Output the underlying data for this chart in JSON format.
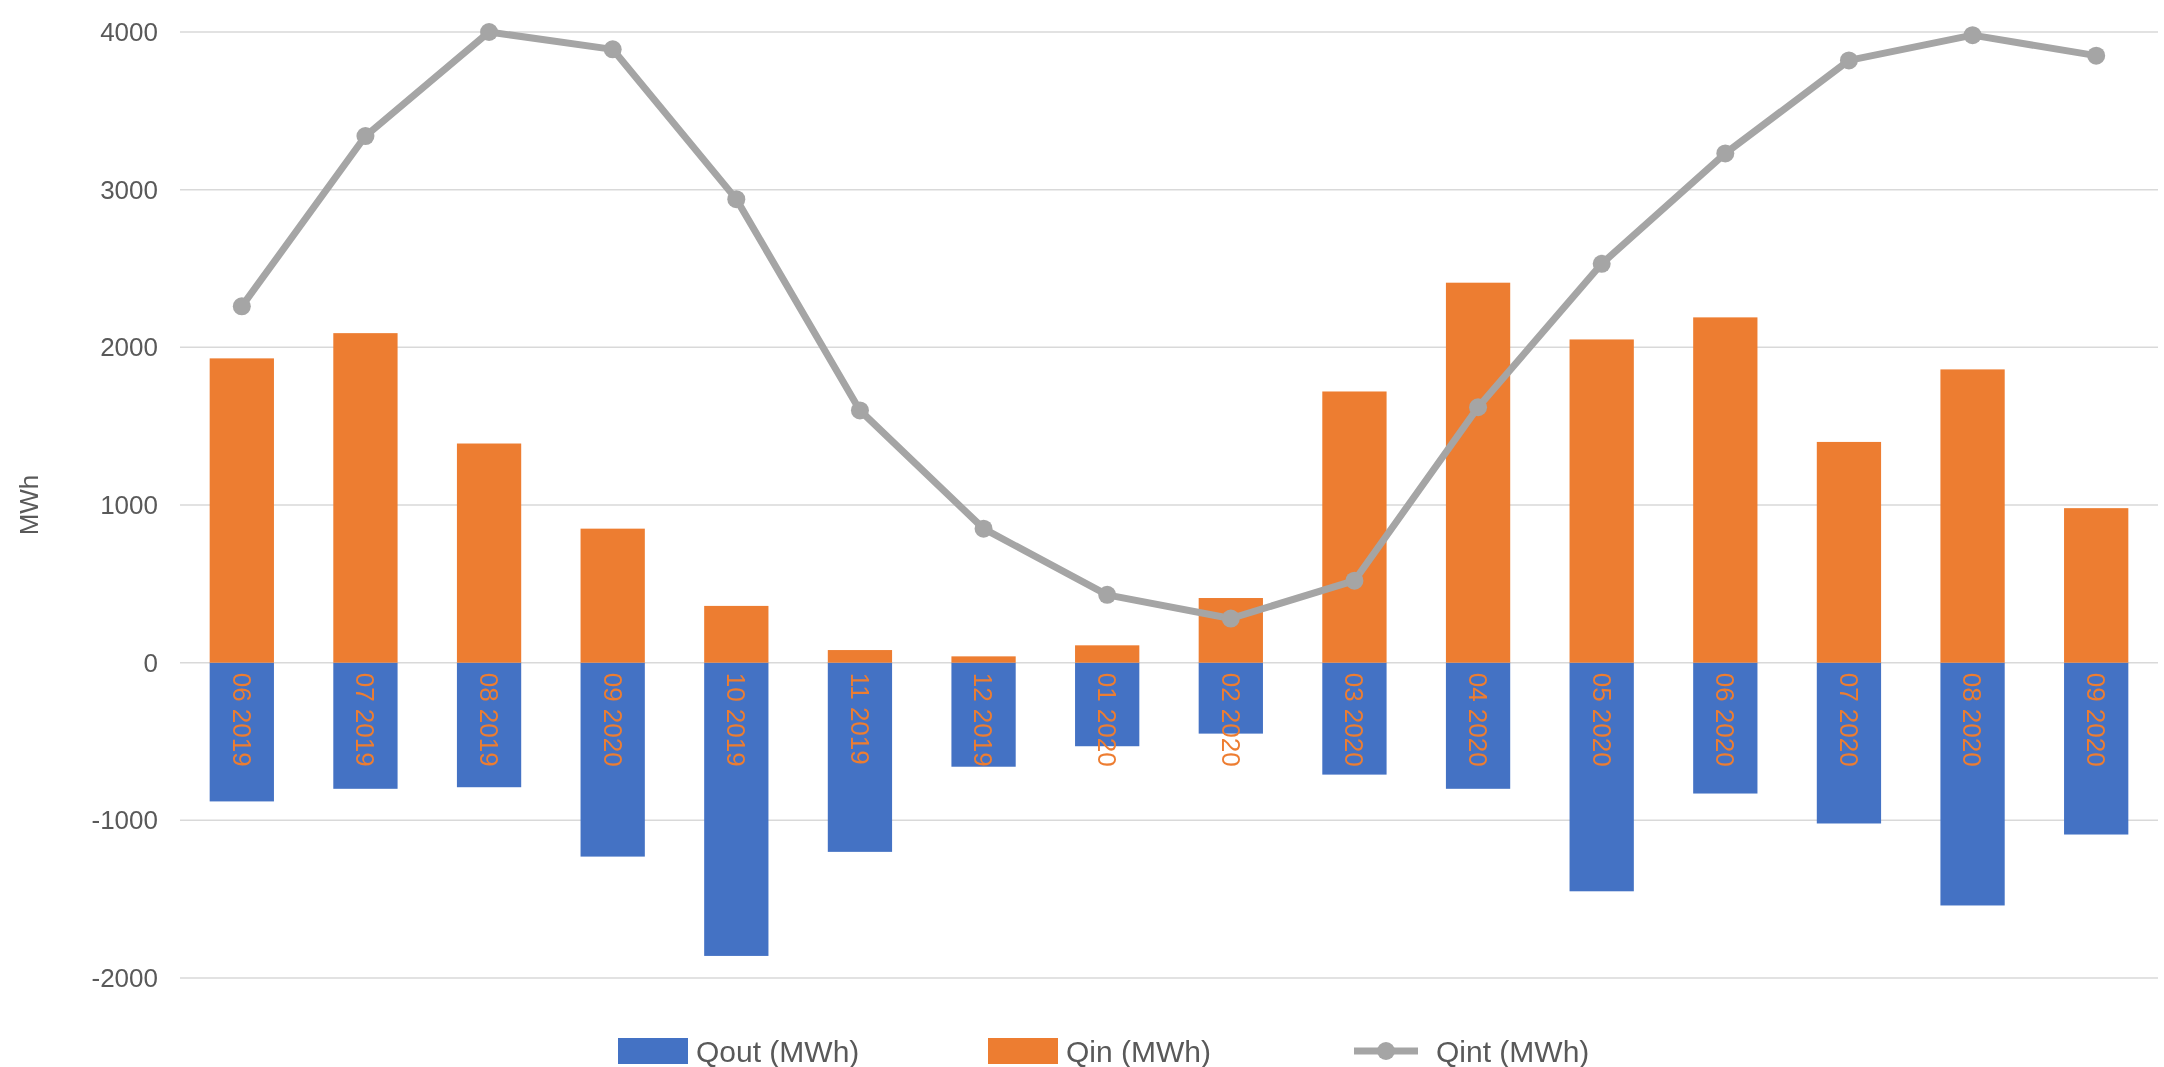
{
  "chart_data": {
    "type": "bar",
    "ylabel": "MWh",
    "categories": [
      "06 2019",
      "07 2019",
      "08 2019",
      "09 2020",
      "10 2019",
      "11 2019",
      "12 2019",
      "01 2020",
      "02 2020",
      "03 2020",
      "04 2020",
      "05 2020",
      "06 2020",
      "07 2020",
      "08 2020",
      "09 2020"
    ],
    "series": [
      {
        "name": "Qout (MWh)",
        "color": "#4472c4",
        "values": [
          -880,
          -800,
          -790,
          -1230,
          -1860,
          -1200,
          -660,
          -530,
          -450,
          -710,
          -800,
          -1450,
          -830,
          -1020,
          -1540,
          -1090
        ]
      },
      {
        "name": "Qin (MWh)",
        "color": "#ed7d31",
        "values": [
          1930,
          2090,
          1390,
          850,
          360,
          80,
          40,
          110,
          410,
          1720,
          2410,
          2050,
          2190,
          1400,
          1860,
          980
        ]
      },
      {
        "name": "Qint (MWh)",
        "type": "line",
        "color": "#a5a5a5",
        "marker": "circle",
        "values": [
          2260,
          3340,
          4000,
          3890,
          2940,
          1600,
          850,
          430,
          280,
          520,
          1620,
          2530,
          3230,
          3820,
          3980,
          3850
        ]
      }
    ],
    "ylim": [
      -2000,
      4000
    ],
    "yticks": [
      -2000,
      -1000,
      0,
      1000,
      2000,
      3000,
      4000
    ],
    "grid": "y",
    "legend": "bottom",
    "stacked": true
  }
}
